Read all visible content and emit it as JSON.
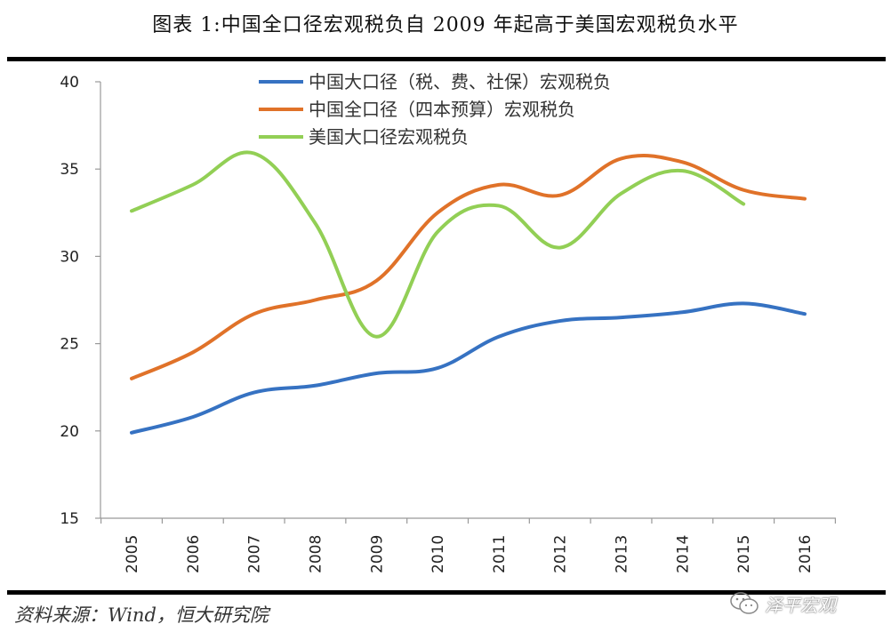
{
  "header": {
    "title": "图表 1:中国全口径宏观税负自 2009 年起高于美国宏观税负水平"
  },
  "footer": {
    "source": "资料来源：Wind，恒大研究院",
    "watermark": "泽平宏观",
    "watermark_icon": "wechat-icon"
  },
  "chart_data": {
    "type": "line",
    "title": "图表 1:中国全口径宏观税负自 2009 年起高于美国宏观税负水平",
    "xlabel": "",
    "ylabel": "",
    "categories": [
      "2005",
      "2006",
      "2007",
      "2008",
      "2009",
      "2010",
      "2011",
      "2012",
      "2013",
      "2014",
      "2015",
      "2016"
    ],
    "ylim": [
      15,
      40
    ],
    "yticks": [
      "15",
      "20",
      "25",
      "30",
      "35",
      "40"
    ],
    "grid": false,
    "smooth": true,
    "legend_position": "top-center",
    "series": [
      {
        "name": "中国大口径（税、费、社保）宏观税负",
        "color": "#3672c2",
        "values": [
          19.9,
          20.8,
          22.2,
          22.6,
          23.3,
          23.6,
          25.4,
          26.3,
          26.5,
          26.8,
          27.3,
          26.7
        ]
      },
      {
        "name": "中国全口径（四本预算）宏观税负",
        "color": "#e07229",
        "values": [
          23.0,
          24.5,
          26.7,
          27.5,
          28.6,
          32.5,
          34.1,
          33.5,
          35.6,
          35.4,
          33.8,
          33.3
        ]
      },
      {
        "name": "美国大口径宏观税负",
        "color": "#92cf55",
        "values": [
          32.6,
          34.1,
          35.9,
          31.9,
          25.4,
          31.4,
          32.9,
          30.5,
          33.6,
          34.9,
          33.0,
          null
        ]
      }
    ]
  }
}
